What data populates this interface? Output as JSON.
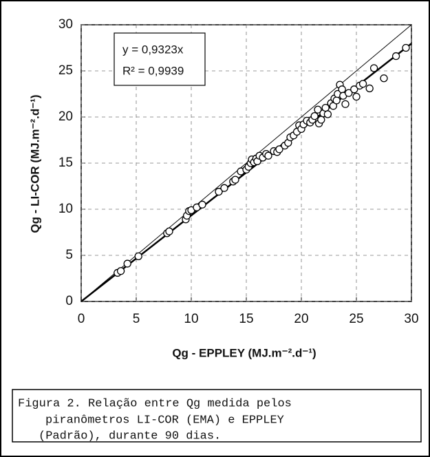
{
  "chart_data": {
    "type": "scatter",
    "xlabel": "Qg - EPPLEY (MJ.m⁻².d⁻¹)",
    "ylabel": "Qg - LI-COR (MJ.m⁻².d⁻¹)",
    "x": [
      3.3,
      3.6,
      4.2,
      5.2,
      7.8,
      8.0,
      9.5,
      9.6,
      9.8,
      10.0,
      10.5,
      11.0,
      12.5,
      13.0,
      13.8,
      14.0,
      14.5,
      15.0,
      15.2,
      15.4,
      15.5,
      15.7,
      15.9,
      16.0,
      16.2,
      16.5,
      16.8,
      17.0,
      17.5,
      17.8,
      18.0,
      18.5,
      18.8,
      19.0,
      19.3,
      19.6,
      19.8,
      20.0,
      20.2,
      20.5,
      20.8,
      21.0,
      21.2,
      21.5,
      21.6,
      21.8,
      22.0,
      22.2,
      22.4,
      22.7,
      22.9,
      23.0,
      23.2,
      23.3,
      23.5,
      23.7,
      23.8,
      24.0,
      24.3,
      24.8,
      25.0,
      25.3,
      25.6,
      26.2,
      26.6,
      27.5,
      28.6,
      29.5
    ],
    "values": [
      3.1,
      3.3,
      4.1,
      4.9,
      7.4,
      7.6,
      8.9,
      9.3,
      9.8,
      9.9,
      10.2,
      10.5,
      11.9,
      12.3,
      13.0,
      13.2,
      14.1,
      14.3,
      14.6,
      15.0,
      15.4,
      15.1,
      15.5,
      15.2,
      15.8,
      15.6,
      16.0,
      15.8,
      16.3,
      16.2,
      16.5,
      16.9,
      17.2,
      17.8,
      18.0,
      18.4,
      19.1,
      18.7,
      19.2,
      19.6,
      19.4,
      19.7,
      20.1,
      20.8,
      19.3,
      19.7,
      20.4,
      21.0,
      20.3,
      21.5,
      21.2,
      22.0,
      21.8,
      22.5,
      23.5,
      23.0,
      22.3,
      21.4,
      22.6,
      23.0,
      22.2,
      23.4,
      23.6,
      23.1,
      25.3,
      24.2,
      26.6,
      27.5
    ],
    "trendline": {
      "value": 0.9323,
      "label": "y = 0,9323x"
    },
    "r_squared": {
      "value": 0.9939,
      "label": "R² = 0,9939"
    },
    "xlim": [
      0,
      30
    ],
    "ylim": [
      0,
      30
    ],
    "xticks": [
      0,
      5,
      10,
      15,
      20,
      25,
      30
    ],
    "yticks": [
      0,
      5,
      10,
      15,
      20,
      25,
      30
    ],
    "grid": true,
    "color": "#000000"
  },
  "caption": {
    "lines": [
      "Figura 2. Relação entre Qg medida pelos",
      "piranômetros  LI-COR  (EMA)  e  EPPLEY",
      "(Padrão), durante 90 dias."
    ]
  }
}
